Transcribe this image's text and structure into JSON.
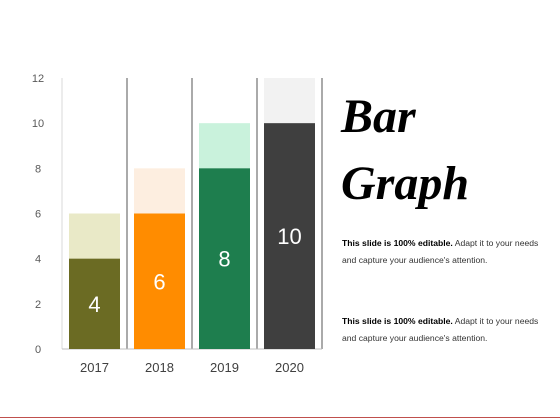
{
  "slide": {
    "title_line1": "Bar",
    "title_line2": "Graph",
    "paragraphs": [
      {
        "bold": "This slide is 100% editable.",
        "text": " Adapt it to your needs and capture your audience's attention."
      },
      {
        "bold": "This slide is 100% editable.",
        "text": " Adapt it to your needs and capture your audience's attention."
      }
    ]
  },
  "chart_data": {
    "type": "bar",
    "categories": [
      "2017",
      "2018",
      "2019",
      "2020"
    ],
    "values": [
      4,
      6,
      8,
      10
    ],
    "background_values": [
      6,
      8,
      10,
      12
    ],
    "data_labels": [
      "4",
      "6",
      "8",
      "10"
    ],
    "ylim": [
      0,
      12
    ],
    "yticks": [
      "0",
      "2",
      "4",
      "6",
      "8",
      "10",
      "12"
    ],
    "bar_colors": [
      "#6b6b23",
      "#ff8c00",
      "#1e7e4e",
      "#3f3f3f"
    ],
    "background_colors": [
      "#e9e9c7",
      "#fdeee0",
      "#c9f2dc",
      "#f2f2f2"
    ],
    "grid": "vertical separators only"
  }
}
